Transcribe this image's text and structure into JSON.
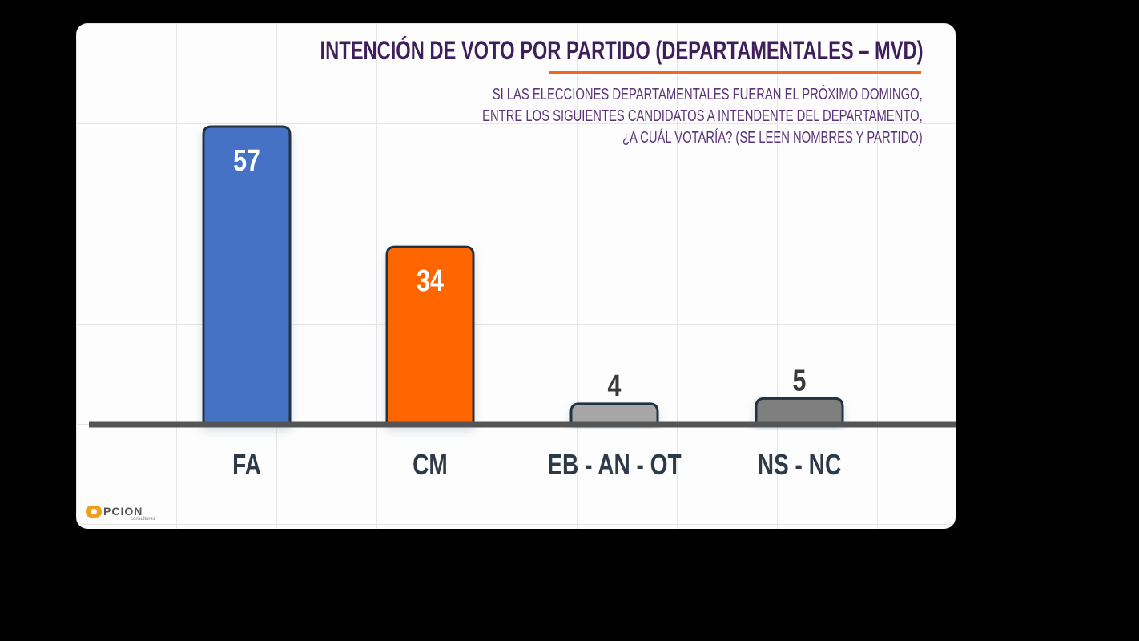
{
  "chart_data": {
    "type": "bar",
    "title": "INTENCIÓN DE VOTO POR PARTIDO (DEPARTAMENTALES – MVD)",
    "subtitle_lines": [
      "SI LAS ELECCIONES DEPARTAMENTALES FUERAN EL PRÓXIMO DOMINGO,",
      "ENTRE LOS SIGUIENTES CANDIDATOS A INTENDENTE DEL DEPARTAMENTO,",
      "¿A CUÁL VOTARÍA? (SE LEEN NOMBRES Y PARTIDO)"
    ],
    "categories": [
      "FA",
      "CM",
      "EB - AN - OT",
      "NS - NC"
    ],
    "values": [
      57,
      34,
      4,
      5
    ],
    "colors": [
      "#4472c4",
      "#ff6600",
      "#a6a6a6",
      "#7f7f7f"
    ],
    "value_label_colors": [
      "#ffffff",
      "#ffffff",
      "#3a3a3a",
      "#3a3a3a"
    ],
    "ylim": [
      0,
      60
    ],
    "grid": true,
    "xlabel": "",
    "ylabel": ""
  },
  "colors": {
    "title": "#3f1f5b",
    "subtitle": "#5d3479",
    "accent_underline": "#f26722",
    "baseline": "#555555",
    "bar_outline": "#24303f"
  },
  "logo": {
    "text": "PCION",
    "subtext": "consultores"
  }
}
